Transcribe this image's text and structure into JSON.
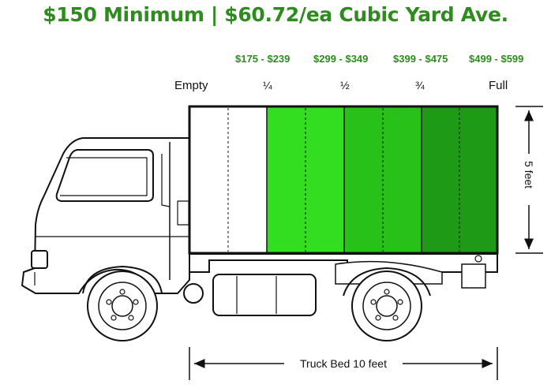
{
  "headline": "$150 Minimum | $60.72/ea Cubic Yard Ave.",
  "price_ranges": [
    "$175 - $239",
    "$299 - $349",
    "$399 - $475",
    "$499 - $599"
  ],
  "fill_levels": [
    "Empty",
    "¼",
    "½",
    "¾",
    "Full"
  ],
  "height_label": "5 feet",
  "length_label": "Truck Bed 10 feet",
  "colors": {
    "headline": "#2e8b1e",
    "segment_quarter": "#33dd1f",
    "segment_half": "#28c11a",
    "segment_three_quarter": "#1f9a16",
    "outline": "#111111"
  }
}
